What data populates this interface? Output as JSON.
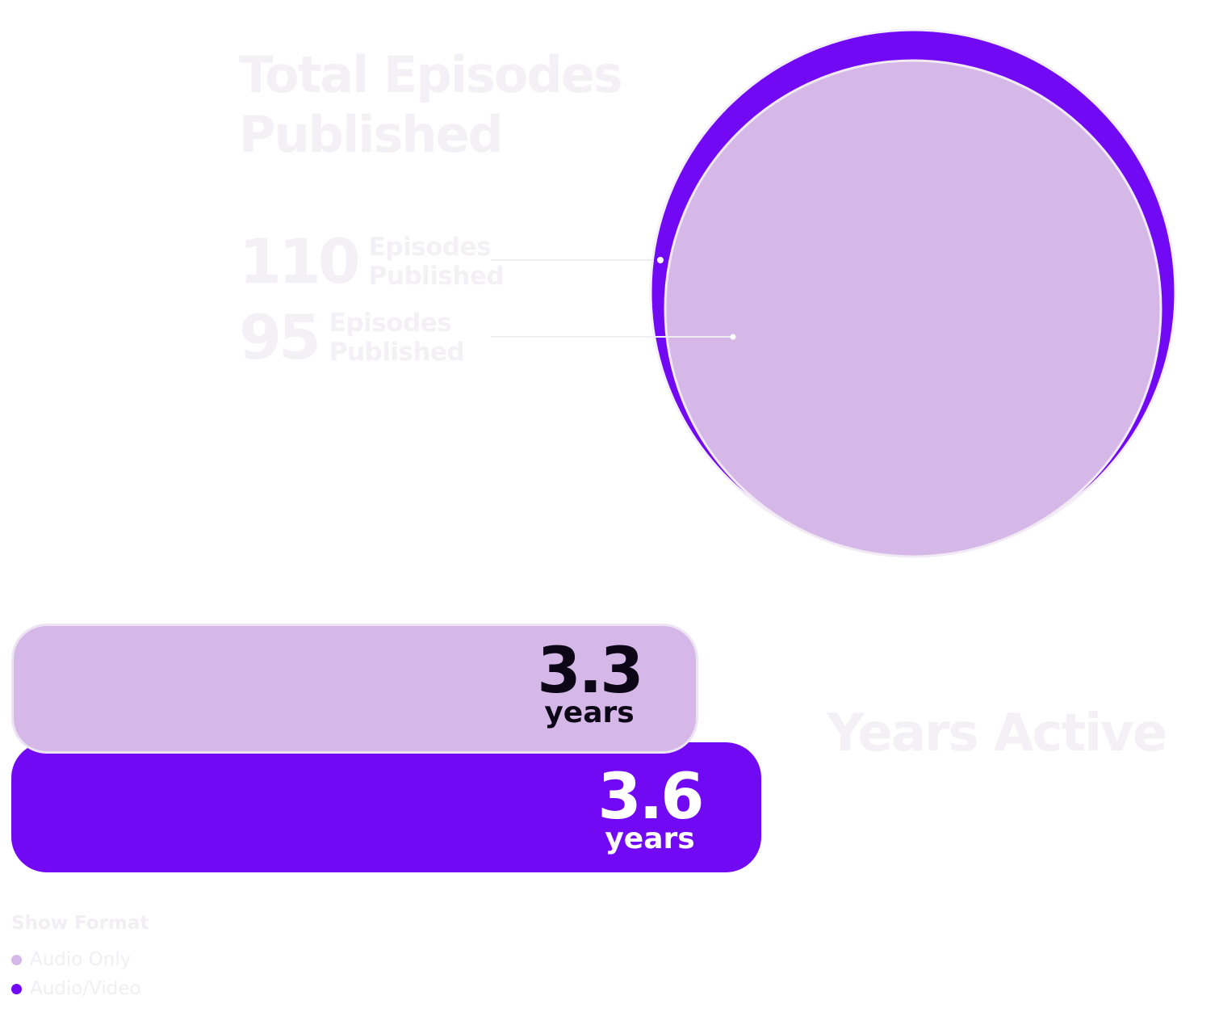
{
  "chart_data": [
    {
      "type": "bubble",
      "title": "Total Episodes Published",
      "series": [
        {
          "name": "Audio/Video",
          "value": 110,
          "label": "Episodes Published",
          "color": "#7209f4"
        },
        {
          "name": "Audio Only",
          "value": 95,
          "label": "Episodes Published",
          "color": "#d5b8e8"
        }
      ]
    },
    {
      "type": "bar",
      "title": "Years Active",
      "unit": "years",
      "series": [
        {
          "name": "Audio Only",
          "value": 3.3,
          "display": "3.3",
          "color": "#d5b8e8"
        },
        {
          "name": "Audio/Video",
          "value": 3.6,
          "display": "3.6",
          "color": "#7209f4"
        }
      ]
    }
  ],
  "legend": {
    "title": "Show Format",
    "items": [
      {
        "label": "Audio Only",
        "color": "#d5b8e8"
      },
      {
        "label": "Audio/Video",
        "color": "#7209f4"
      }
    ]
  }
}
